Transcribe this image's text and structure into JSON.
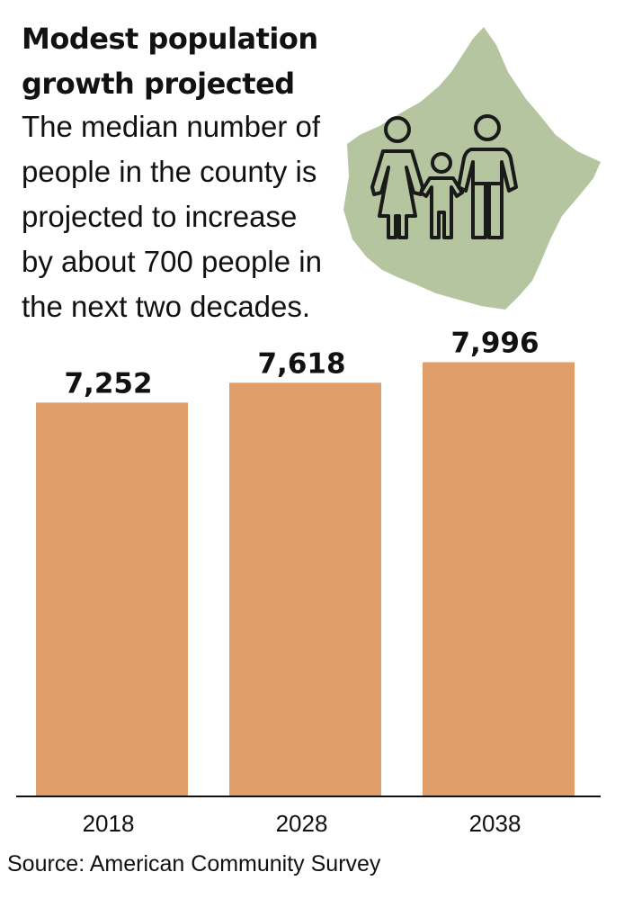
{
  "title_lines": [
    "Modest population",
    "growth projected"
  ],
  "subtitle_lines": [
    "The median number of",
    "people in the county is",
    "projected to increase",
    "by about 700 people in",
    "the next two decades."
  ],
  "source": "Source: American Community Survey",
  "colors": {
    "bar": "#e09e6b",
    "map": "#b5c59f",
    "figures": "#1a1a1a",
    "text": "#111111"
  },
  "illustration": {
    "map_icon": "county-map-icon",
    "family_icon": "family-icon"
  },
  "chart_data": {
    "type": "bar",
    "categories": [
      "2018",
      "2028",
      "2038"
    ],
    "values": [
      7252,
      7618,
      7996
    ],
    "value_labels": [
      "7,252",
      "7,618",
      "7,996"
    ],
    "title": "Modest population growth projected",
    "xlabel": "",
    "ylabel": "",
    "ylim": [
      0,
      8700
    ],
    "grid": false,
    "legend": "none"
  }
}
